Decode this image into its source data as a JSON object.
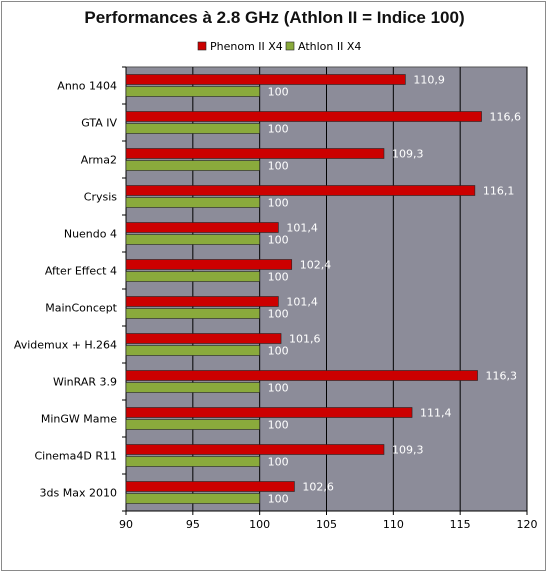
{
  "chart_data": {
    "type": "bar",
    "orientation": "horizontal",
    "title": "Performances à 2.8 GHz (Athlon II = Indice 100)",
    "xlabel": "",
    "ylabel": "",
    "xlim": [
      90,
      120
    ],
    "xticks": [
      90,
      95,
      100,
      105,
      110,
      115,
      120
    ],
    "grid": true,
    "legend_position": "top",
    "categories": [
      "Anno 1404",
      "GTA IV",
      "Arma2",
      "Crysis",
      "Nuendo 4",
      "After Effect 4",
      "MainConcept",
      "Avidemux + H.264",
      "WinRAR 3.9",
      "MinGW Mame",
      "Cinema4D R11",
      "3ds Max 2010"
    ],
    "series": [
      {
        "name": "Phenom II X4",
        "color": "#cc0000",
        "values": [
          110.9,
          116.6,
          109.3,
          116.1,
          101.4,
          102.4,
          101.4,
          101.6,
          116.3,
          111.4,
          109.3,
          102.6
        ],
        "labels": [
          "110,9",
          "116,6",
          "109,3",
          "116,1",
          "101,4",
          "102,4",
          "101,4",
          "101,6",
          "116,3",
          "111,4",
          "109,3",
          "102,6"
        ]
      },
      {
        "name": "Athlon II X4",
        "color": "#8aaa3c",
        "values": [
          100,
          100,
          100,
          100,
          100,
          100,
          100,
          100,
          100,
          100,
          100,
          100
        ],
        "labels": [
          "100",
          "100",
          "100",
          "100",
          "100",
          "100",
          "100",
          "100",
          "100",
          "100",
          "100",
          "100"
        ]
      }
    ],
    "plot_background": "#8c8c99"
  }
}
